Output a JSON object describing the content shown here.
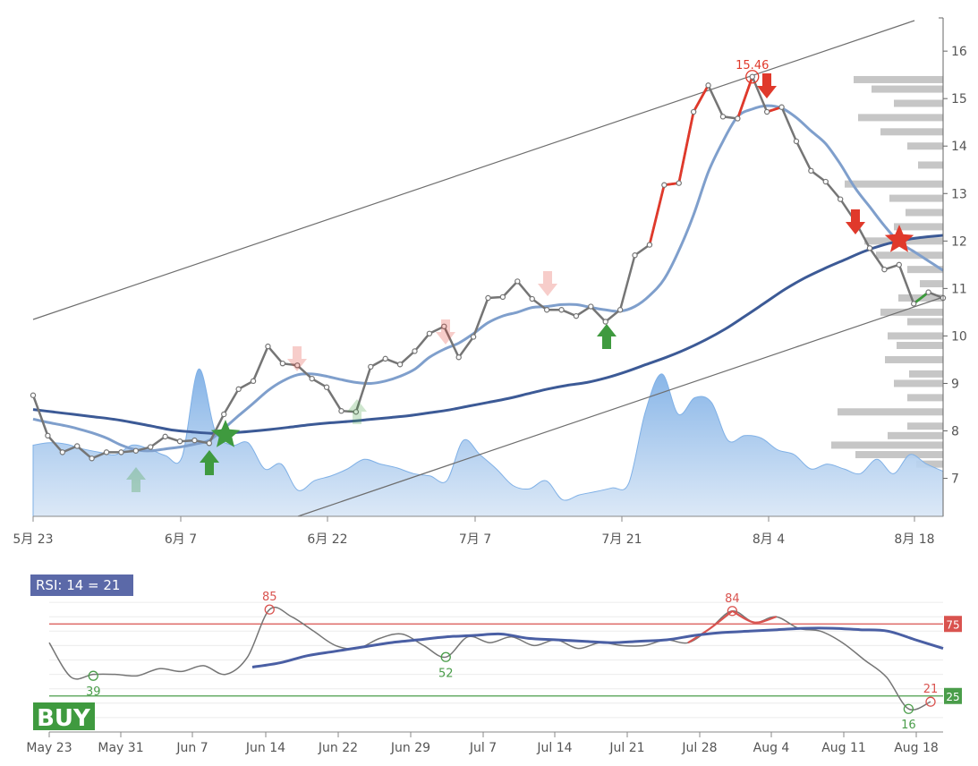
{
  "colors": {
    "volume_fill": "#7fb0e6",
    "price_line": "#757575",
    "price_up_hl": "#e0392b",
    "price_down_hl": "#3a9a3a",
    "ma_short": "#7f9fcc",
    "ma_long": "#3c5a96",
    "channel": "#6e6e6e",
    "profile_bar": "#c6c6c6",
    "marker_up": "#3f9a3f",
    "marker_down": "#e0392b",
    "rsi_line": "#757575",
    "rsi_avg": "#4a5fa4",
    "overbought": "#d9534f",
    "oversold": "#4a9d4a",
    "rsi_label_bg": "#5b69a8",
    "buy_bg": "#3f9a3f"
  },
  "chart_data": [
    {
      "type": "line",
      "x_ticks": [
        "5月 23",
        "6月 7",
        "6月 22",
        "7月 7",
        "7月 21",
        "8月 4",
        "8月 18"
      ],
      "y_ticks": [
        "7",
        "8",
        "9",
        "10",
        "11",
        "12",
        "13",
        "14",
        "15",
        "16"
      ],
      "ylim": [
        6.2,
        16.7
      ],
      "series": [
        {
          "values": [
            8.75,
            7.9,
            7.55,
            7.68,
            7.42,
            7.55,
            7.55,
            7.58,
            7.66,
            7.88,
            7.78,
            7.8,
            7.74,
            8.35,
            8.88,
            9.05,
            9.78,
            9.42,
            9.38,
            9.1,
            8.92,
            8.42,
            8.4,
            9.35,
            9.52,
            9.4,
            9.68,
            10.05,
            10.2,
            9.55,
            9.98,
            10.8,
            10.82,
            11.15,
            10.78,
            10.55,
            10.55,
            10.42,
            10.62,
            10.3,
            10.55,
            11.7,
            11.92,
            13.18,
            13.22,
            14.72,
            15.28,
            14.62,
            14.58,
            15.46,
            14.72,
            14.82,
            14.1,
            13.48,
            13.25,
            12.88,
            12.42,
            11.85,
            11.4,
            11.5,
            10.68,
            10.92,
            10.8
          ]
        },
        {
          "values": [
            8.25,
            8.18,
            8.12,
            8.05,
            7.96,
            7.85,
            7.7,
            7.6,
            7.58,
            7.62,
            7.66,
            7.72,
            7.8,
            8.05,
            8.32,
            8.58,
            8.85,
            9.05,
            9.18,
            9.2,
            9.15,
            9.08,
            9.02,
            9.0,
            9.05,
            9.15,
            9.3,
            9.55,
            9.72,
            9.85,
            10.05,
            10.28,
            10.42,
            10.5,
            10.6,
            10.62,
            10.66,
            10.66,
            10.6,
            10.55,
            10.52,
            10.62,
            10.85,
            11.2,
            11.8,
            12.55,
            13.45,
            14.1,
            14.62,
            14.78,
            14.85,
            14.8,
            14.6,
            14.32,
            14.05,
            13.62,
            13.12,
            12.72,
            12.32,
            11.98,
            11.78,
            11.58,
            11.38
          ]
        },
        {
          "values": [
            8.45,
            8.4,
            8.35,
            8.3,
            8.25,
            8.18,
            8.1,
            8.02,
            7.98,
            7.95,
            7.96,
            7.99,
            8.03,
            8.08,
            8.13,
            8.17,
            8.2,
            8.24,
            8.28,
            8.32,
            8.38,
            8.44,
            8.52,
            8.6,
            8.68,
            8.78,
            8.88,
            8.96,
            9.02,
            9.12,
            9.25,
            9.4,
            9.55,
            9.72,
            9.92,
            10.15,
            10.42,
            10.7,
            10.98,
            11.22,
            11.42,
            11.6,
            11.78,
            11.92,
            12.02,
            12.08,
            12.12
          ]
        },
        {
          "values": [
            7.7,
            7.75,
            7.72,
            7.62,
            7.55,
            7.5,
            7.7,
            7.62,
            7.48,
            7.45,
            9.3,
            8.0,
            7.7,
            7.75,
            7.2,
            7.3,
            6.75,
            6.95,
            7.05,
            7.2,
            7.4,
            7.3,
            7.22,
            7.1,
            7.05,
            6.95,
            7.8,
            7.5,
            7.2,
            6.85,
            6.78,
            6.95,
            6.55,
            6.65,
            6.72,
            6.8,
            6.9,
            8.4,
            9.2,
            8.35,
            8.7,
            8.6,
            7.8,
            7.9,
            7.85,
            7.6,
            7.5,
            7.2,
            7.3,
            7.2,
            7.1,
            7.4,
            7.1,
            7.5,
            7.3,
            7.15
          ]
        }
      ],
      "annotations": [
        "15.46"
      ]
    },
    {
      "type": "line",
      "x_ticks": [
        "May 23",
        "May 31",
        "Jun 7",
        "Jun 14",
        "Jun 22",
        "Jun 29",
        "Jul 7",
        "Jul 14",
        "Jul 21",
        "Jul 28",
        "Aug 4",
        "Aug 11",
        "Aug 18"
      ],
      "ylim": [
        0,
        100
      ],
      "series": [
        {
          "values": [
            62,
            38,
            40,
            40,
            39,
            44,
            42,
            46,
            40,
            52,
            85,
            80,
            70,
            60,
            58,
            65,
            68,
            60,
            52,
            66,
            62,
            66,
            60,
            64,
            58,
            62,
            60,
            60,
            64,
            62,
            72,
            84,
            76,
            80,
            72,
            70,
            62,
            50,
            38,
            16,
            21
          ]
        },
        {
          "values": [
            45,
            48,
            53,
            56,
            59,
            62,
            64,
            66,
            67,
            68,
            65,
            64,
            63,
            62,
            63,
            64,
            67,
            69,
            70,
            71,
            72,
            72,
            71,
            70,
            64,
            58
          ]
        }
      ],
      "annotations": [
        "85",
        "39",
        "52",
        "84",
        "16",
        "21"
      ],
      "overbought": "75",
      "oversold": "25",
      "rsi_label": "RSI: 14 = 21",
      "signal": "BUY"
    }
  ]
}
